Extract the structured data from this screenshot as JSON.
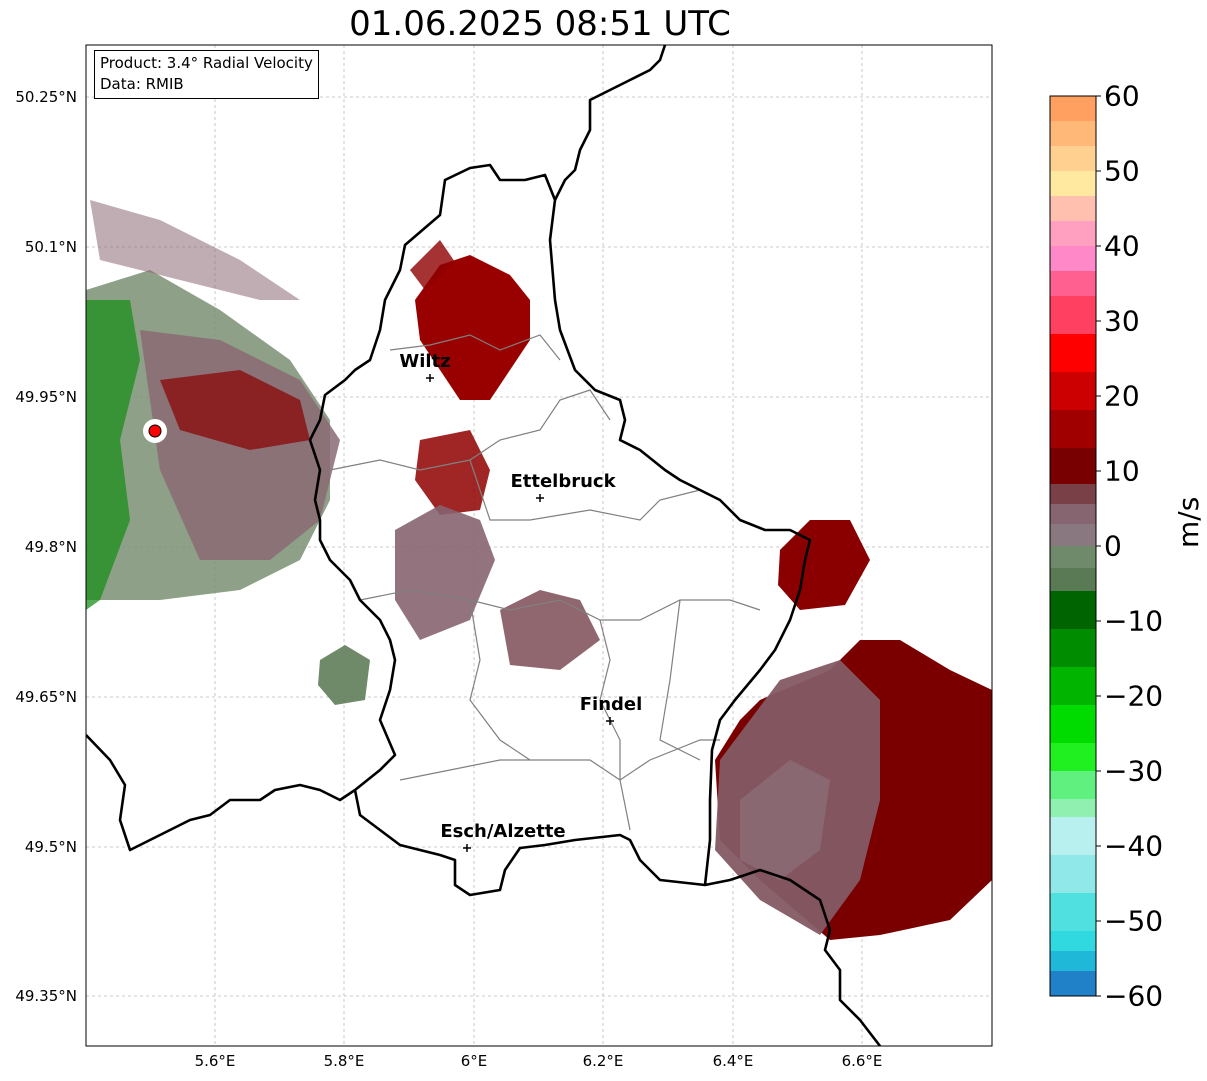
{
  "title": "01.06.2025 08:51 UTC",
  "info": {
    "product": "Product: 3.4° Radial Velocity",
    "data": "Data: RMIB"
  },
  "axes": {
    "lat_ticks": [
      "50.25°N",
      "50.1°N",
      "49.95°N",
      "49.8°N",
      "49.65°N",
      "49.5°N",
      "49.35°N"
    ],
    "lon_ticks": [
      "5.6°E",
      "5.8°E",
      "6°E",
      "6.2°E",
      "6.4°E",
      "6.6°E"
    ],
    "lat_range": [
      49.3,
      50.3
    ],
    "lon_range": [
      5.4,
      6.8
    ],
    "grid": true
  },
  "cities": [
    {
      "name": "Wiltz",
      "lon": 5.93,
      "lat": 49.97
    },
    {
      "name": "Ettelbruck",
      "lon": 6.1,
      "lat": 49.85
    },
    {
      "name": "Findel",
      "lon": 6.21,
      "lat": 49.63
    },
    {
      "name": "Esch/Alzette",
      "lon": 5.99,
      "lat": 49.5
    }
  ],
  "radar_site": {
    "lon": 5.505,
    "lat": 49.915,
    "color": "#ff0000"
  },
  "colorbar": {
    "label": "m/s",
    "ticks": [
      "60",
      "50",
      "40",
      "30",
      "20",
      "10",
      "0",
      "−10",
      "−20",
      "−30",
      "−40",
      "−50",
      "−60"
    ],
    "range": [
      -60,
      60
    ]
  }
}
